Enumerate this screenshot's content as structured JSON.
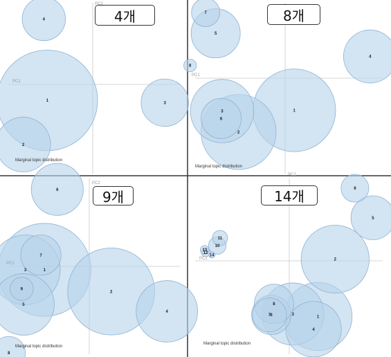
{
  "colors": {
    "bubble_fill": "#b8d3ea",
    "bubble_stroke": "#8fb2d2",
    "axis": "#c8c8c8",
    "divider": "#333333"
  },
  "chart_data": [
    {
      "type": "scatter",
      "label": "4개",
      "axes": {
        "x": "PC1",
        "y": "PC2"
      },
      "caption": "Marginal topic distribution",
      "xlim": [
        -1,
        1
      ],
      "ylim": [
        -1,
        1
      ],
      "points": [
        {
          "id": "1",
          "x": -0.53,
          "y": -0.21,
          "size": 0.27
        },
        {
          "id": "2",
          "x": -0.81,
          "y": -0.79,
          "size": 0.08
        },
        {
          "id": "3",
          "x": 0.84,
          "y": -0.24,
          "size": 0.06
        },
        {
          "id": "4",
          "x": -0.57,
          "y": 0.86,
          "size": 0.05
        }
      ]
    },
    {
      "type": "scatter",
      "label": "8개",
      "axes": {
        "x": "PC1",
        "y": ""
      },
      "caption": "Marginal topic distribution",
      "xlim": [
        -1,
        1
      ],
      "ylim": [
        -1,
        1
      ],
      "points": [
        {
          "id": "1",
          "x": 0.1,
          "y": -0.43,
          "size": 0.17
        },
        {
          "id": "2",
          "x": -0.51,
          "y": -0.72,
          "size": 0.14
        },
        {
          "id": "3",
          "x": -0.69,
          "y": -0.44,
          "size": 0.1
        },
        {
          "id": "4",
          "x": 0.93,
          "y": 0.29,
          "size": 0.07
        },
        {
          "id": "5",
          "x": -0.76,
          "y": 0.6,
          "size": 0.06
        },
        {
          "id": "6",
          "x": -0.7,
          "y": -0.54,
          "size": 0.04
        },
        {
          "id": "7",
          "x": -0.87,
          "y": 0.88,
          "size": 0.02
        },
        {
          "id": "8",
          "x": -1.04,
          "y": 0.17,
          "size": 0.004
        }
      ]
    },
    {
      "type": "scatter",
      "label": "9개",
      "axes": {
        "x": "PC1",
        "y": "PC2"
      },
      "caption": "Marginal topic distribution",
      "xlim": [
        -1,
        1
      ],
      "ylim": [
        -1,
        1
      ],
      "points": [
        {
          "id": "1",
          "x": -0.49,
          "y": -0.04,
          "size": 0.16
        },
        {
          "id": "2",
          "x": 0.24,
          "y": -0.29,
          "size": 0.14
        },
        {
          "id": "3",
          "x": -0.7,
          "y": -0.04,
          "size": 0.09
        },
        {
          "id": "4",
          "x": 0.85,
          "y": -0.52,
          "size": 0.07
        },
        {
          "id": "5",
          "x": -0.72,
          "y": -0.44,
          "size": 0.07
        },
        {
          "id": "6",
          "x": -0.35,
          "y": 0.89,
          "size": 0.05
        },
        {
          "id": "7",
          "x": -0.53,
          "y": 0.13,
          "size": 0.03
        },
        {
          "id": "8",
          "x": -0.88,
          "y": -1.0,
          "size": 0.02
        },
        {
          "id": "9",
          "x": -0.74,
          "y": -0.26,
          "size": 0.01
        }
      ]
    },
    {
      "type": "scatter",
      "label": "14개",
      "axes": {
        "x": "PC1",
        "y": "PC2"
      },
      "caption": "Marginal topic distribution",
      "xlim": [
        -1,
        1
      ],
      "ylim": [
        -1,
        1
      ],
      "points": [
        {
          "id": "1",
          "x": 0.32,
          "y": -0.66,
          "size": 0.12
        },
        {
          "id": "2",
          "x": 0.51,
          "y": 0.02,
          "size": 0.12
        },
        {
          "id": "3",
          "x": 0.04,
          "y": -0.63,
          "size": 0.1
        },
        {
          "id": "4",
          "x": 0.27,
          "y": -0.81,
          "size": 0.08
        },
        {
          "id": "5",
          "x": 0.93,
          "y": 0.51,
          "size": 0.05
        },
        {
          "id": "6",
          "x": -0.2,
          "y": -0.64,
          "size": 0.04
        },
        {
          "id": "7",
          "x": -0.22,
          "y": -0.64,
          "size": 0.03
        },
        {
          "id": "8",
          "x": -0.17,
          "y": -0.51,
          "size": 0.04
        },
        {
          "id": "9",
          "x": 0.73,
          "y": 0.86,
          "size": 0.02
        },
        {
          "id": "10",
          "x": -0.8,
          "y": 0.18,
          "size": 0.008
        },
        {
          "id": "11",
          "x": -0.77,
          "y": 0.27,
          "size": 0.006
        },
        {
          "id": "12",
          "x": -0.93,
          "y": 0.1,
          "size": 0.002
        },
        {
          "id": "13",
          "x": -0.94,
          "y": 0.13,
          "size": 0.002
        },
        {
          "id": "14",
          "x": -0.86,
          "y": 0.07,
          "size": 0.001
        }
      ]
    }
  ]
}
